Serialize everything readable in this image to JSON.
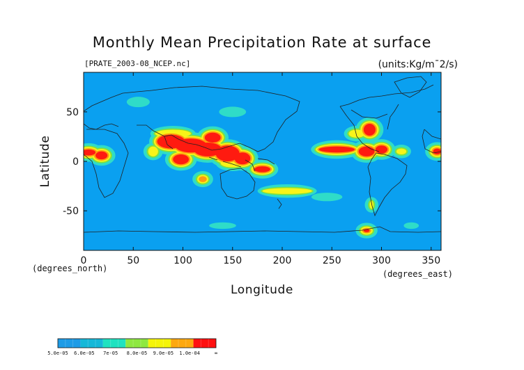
{
  "chart_data": {
    "type": "heatmap",
    "title": "Monthly Mean Precipitation Rate at surface",
    "file_label": "[PRATE_2003-08_NCEP.nc]",
    "units_label": "(units:Kg/m¯2/s)",
    "xlabel": "Longitude",
    "ylabel": "Latitude",
    "x_unit_label": "(degrees_east)",
    "y_unit_label": "(degrees_north)",
    "xlim": [
      0,
      360
    ],
    "ylim": [
      -90,
      90
    ],
    "x_ticks": [
      0,
      50,
      100,
      150,
      200,
      250,
      300,
      350
    ],
    "y_ticks": [
      -50,
      0,
      50
    ],
    "colorbar": {
      "levels": [
        "5.0e-05",
        "6.0e-05",
        "7e-05",
        "8.0e-05",
        "9.0e-05",
        "1.0e-04",
        "∞"
      ],
      "colors": [
        "#1e9be6",
        "#16b8d8",
        "#1fe2c0",
        "#8ee840",
        "#f5f50a",
        "#fda80f",
        "#ff1010"
      ]
    },
    "colors": {
      "ocean": "#0aa0f0",
      "light": "#2fdcc8",
      "green": "#80e040",
      "yellow": "#f8f418",
      "orange": "#ff9a10",
      "red": "#ff1a10",
      "coast": "#202020"
    },
    "regions": [
      {
        "lon": 88,
        "lat": 20,
        "rx": 14,
        "ry": 7,
        "level": 6
      },
      {
        "lon": 108,
        "lat": 16,
        "rx": 16,
        "ry": 7,
        "level": 6
      },
      {
        "lon": 125,
        "lat": 12,
        "rx": 14,
        "ry": 7,
        "level": 6
      },
      {
        "lon": 145,
        "lat": 8,
        "rx": 12,
        "ry": 8,
        "level": 6
      },
      {
        "lon": 160,
        "lat": 3,
        "rx": 8,
        "ry": 6,
        "level": 6
      },
      {
        "lon": 98,
        "lat": 2,
        "rx": 8,
        "ry": 5,
        "level": 6
      },
      {
        "lon": 130,
        "lat": 24,
        "rx": 8,
        "ry": 5,
        "level": 6
      },
      {
        "lon": 180,
        "lat": -8,
        "rx": 8,
        "ry": 3,
        "level": 6
      },
      {
        "lon": 5,
        "lat": 9,
        "rx": 7,
        "ry": 3,
        "level": 6
      },
      {
        "lon": 18,
        "lat": 6,
        "rx": 6,
        "ry": 4,
        "level": 6
      },
      {
        "lon": 255,
        "lat": 12,
        "rx": 18,
        "ry": 3,
        "level": 6
      },
      {
        "lon": 285,
        "lat": 10,
        "rx": 8,
        "ry": 5,
        "level": 6
      },
      {
        "lon": 288,
        "lat": 32,
        "rx": 6,
        "ry": 6,
        "level": 6
      },
      {
        "lon": 300,
        "lat": 12,
        "rx": 6,
        "ry": 4,
        "level": 6
      },
      {
        "lon": 356,
        "lat": 10,
        "rx": 4,
        "ry": 3,
        "level": 6
      },
      {
        "lon": 285,
        "lat": -70,
        "rx": 3,
        "ry": 1.5,
        "level": 6
      },
      {
        "lon": 120,
        "lat": -18,
        "rx": 4,
        "ry": 3,
        "level": 5
      },
      {
        "lon": 90,
        "lat": 28,
        "rx": 18,
        "ry": 4,
        "level": 4
      },
      {
        "lon": 70,
        "lat": 10,
        "rx": 5,
        "ry": 5,
        "level": 4
      },
      {
        "lon": 150,
        "lat": -2,
        "rx": 12,
        "ry": 4,
        "level": 4
      },
      {
        "lon": 205,
        "lat": -30,
        "rx": 25,
        "ry": 3,
        "level": 4
      },
      {
        "lon": 275,
        "lat": 28,
        "rx": 8,
        "ry": 4,
        "level": 4
      },
      {
        "lon": 320,
        "lat": 10,
        "rx": 5,
        "ry": 3,
        "level": 4
      },
      {
        "lon": 290,
        "lat": -44,
        "rx": 2,
        "ry": 4,
        "level": 4
      },
      {
        "lon": 55,
        "lat": 60,
        "rx": 10,
        "ry": 4,
        "level": 2
      },
      {
        "lon": 150,
        "lat": 50,
        "rx": 12,
        "ry": 4,
        "level": 2
      },
      {
        "lon": 245,
        "lat": -36,
        "rx": 14,
        "ry": 3,
        "level": 2
      },
      {
        "lon": 140,
        "lat": -65,
        "rx": 12,
        "ry": 2,
        "level": 2
      },
      {
        "lon": 330,
        "lat": -65,
        "rx": 6,
        "ry": 2,
        "level": 2
      }
    ]
  }
}
